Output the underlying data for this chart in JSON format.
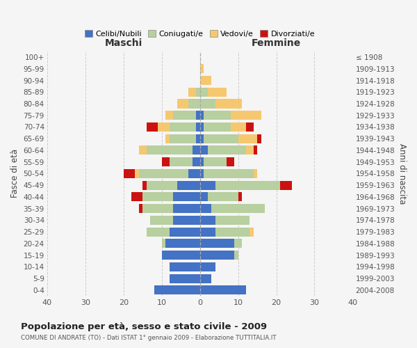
{
  "age_groups": [
    "0-4",
    "5-9",
    "10-14",
    "15-19",
    "20-24",
    "25-29",
    "30-34",
    "35-39",
    "40-44",
    "45-49",
    "50-54",
    "55-59",
    "60-64",
    "65-69",
    "70-74",
    "75-79",
    "80-84",
    "85-89",
    "90-94",
    "95-99",
    "100+"
  ],
  "birth_years": [
    "2004-2008",
    "1999-2003",
    "1994-1998",
    "1989-1993",
    "1984-1988",
    "1979-1983",
    "1974-1978",
    "1969-1973",
    "1964-1968",
    "1959-1963",
    "1954-1958",
    "1949-1953",
    "1944-1948",
    "1939-1943",
    "1934-1938",
    "1929-1933",
    "1924-1928",
    "1919-1923",
    "1914-1918",
    "1909-1913",
    "≤ 1908"
  ],
  "maschi": {
    "celibi": [
      12,
      8,
      8,
      10,
      9,
      8,
      7,
      7,
      7,
      6,
      3,
      2,
      2,
      1,
      1,
      1,
      0,
      0,
      0,
      0,
      0
    ],
    "coniugati": [
      0,
      0,
      0,
      0,
      1,
      6,
      6,
      8,
      8,
      8,
      13,
      6,
      12,
      7,
      7,
      6,
      3,
      1,
      0,
      0,
      0
    ],
    "vedovi": [
      0,
      0,
      0,
      0,
      0,
      0,
      0,
      0,
      0,
      0,
      1,
      0,
      2,
      1,
      3,
      2,
      3,
      2,
      0,
      0,
      0
    ],
    "divorziati": [
      0,
      0,
      0,
      0,
      0,
      0,
      0,
      1,
      3,
      1,
      3,
      2,
      0,
      0,
      3,
      0,
      0,
      0,
      0,
      0,
      0
    ]
  },
  "femmine": {
    "nubili": [
      12,
      3,
      4,
      9,
      9,
      4,
      4,
      3,
      2,
      4,
      1,
      1,
      2,
      1,
      1,
      1,
      0,
      0,
      0,
      0,
      0
    ],
    "coniugate": [
      0,
      0,
      0,
      1,
      2,
      9,
      9,
      14,
      8,
      17,
      13,
      6,
      10,
      9,
      7,
      7,
      4,
      2,
      0,
      0,
      0
    ],
    "vedove": [
      0,
      0,
      0,
      0,
      0,
      1,
      0,
      0,
      0,
      0,
      1,
      0,
      2,
      5,
      4,
      8,
      7,
      5,
      3,
      1,
      0
    ],
    "divorziate": [
      0,
      0,
      0,
      0,
      0,
      0,
      0,
      0,
      1,
      3,
      0,
      2,
      1,
      1,
      2,
      0,
      0,
      0,
      0,
      0,
      0
    ]
  },
  "colors": {
    "celibi_nubili": "#4472c4",
    "coniugati": "#b8cfa0",
    "vedovi": "#f5c870",
    "divorziati": "#cc1111"
  },
  "xlim": 40,
  "title": "Popolazione per età, sesso e stato civile - 2009",
  "subtitle": "COMUNE DI ANDRATE (TO) - Dati ISTAT 1° gennaio 2009 - Elaborazione TUTTITALIA.IT",
  "xlabel_left": "Maschi",
  "xlabel_right": "Femmine",
  "ylabel_left": "Fasce di età",
  "ylabel_right": "Anni di nascita",
  "legend_labels": [
    "Celibi/Nubili",
    "Coniugati/e",
    "Vedovi/e",
    "Divorziati/e"
  ],
  "background_color": "#f5f5f5",
  "grid_color": "#cccccc"
}
